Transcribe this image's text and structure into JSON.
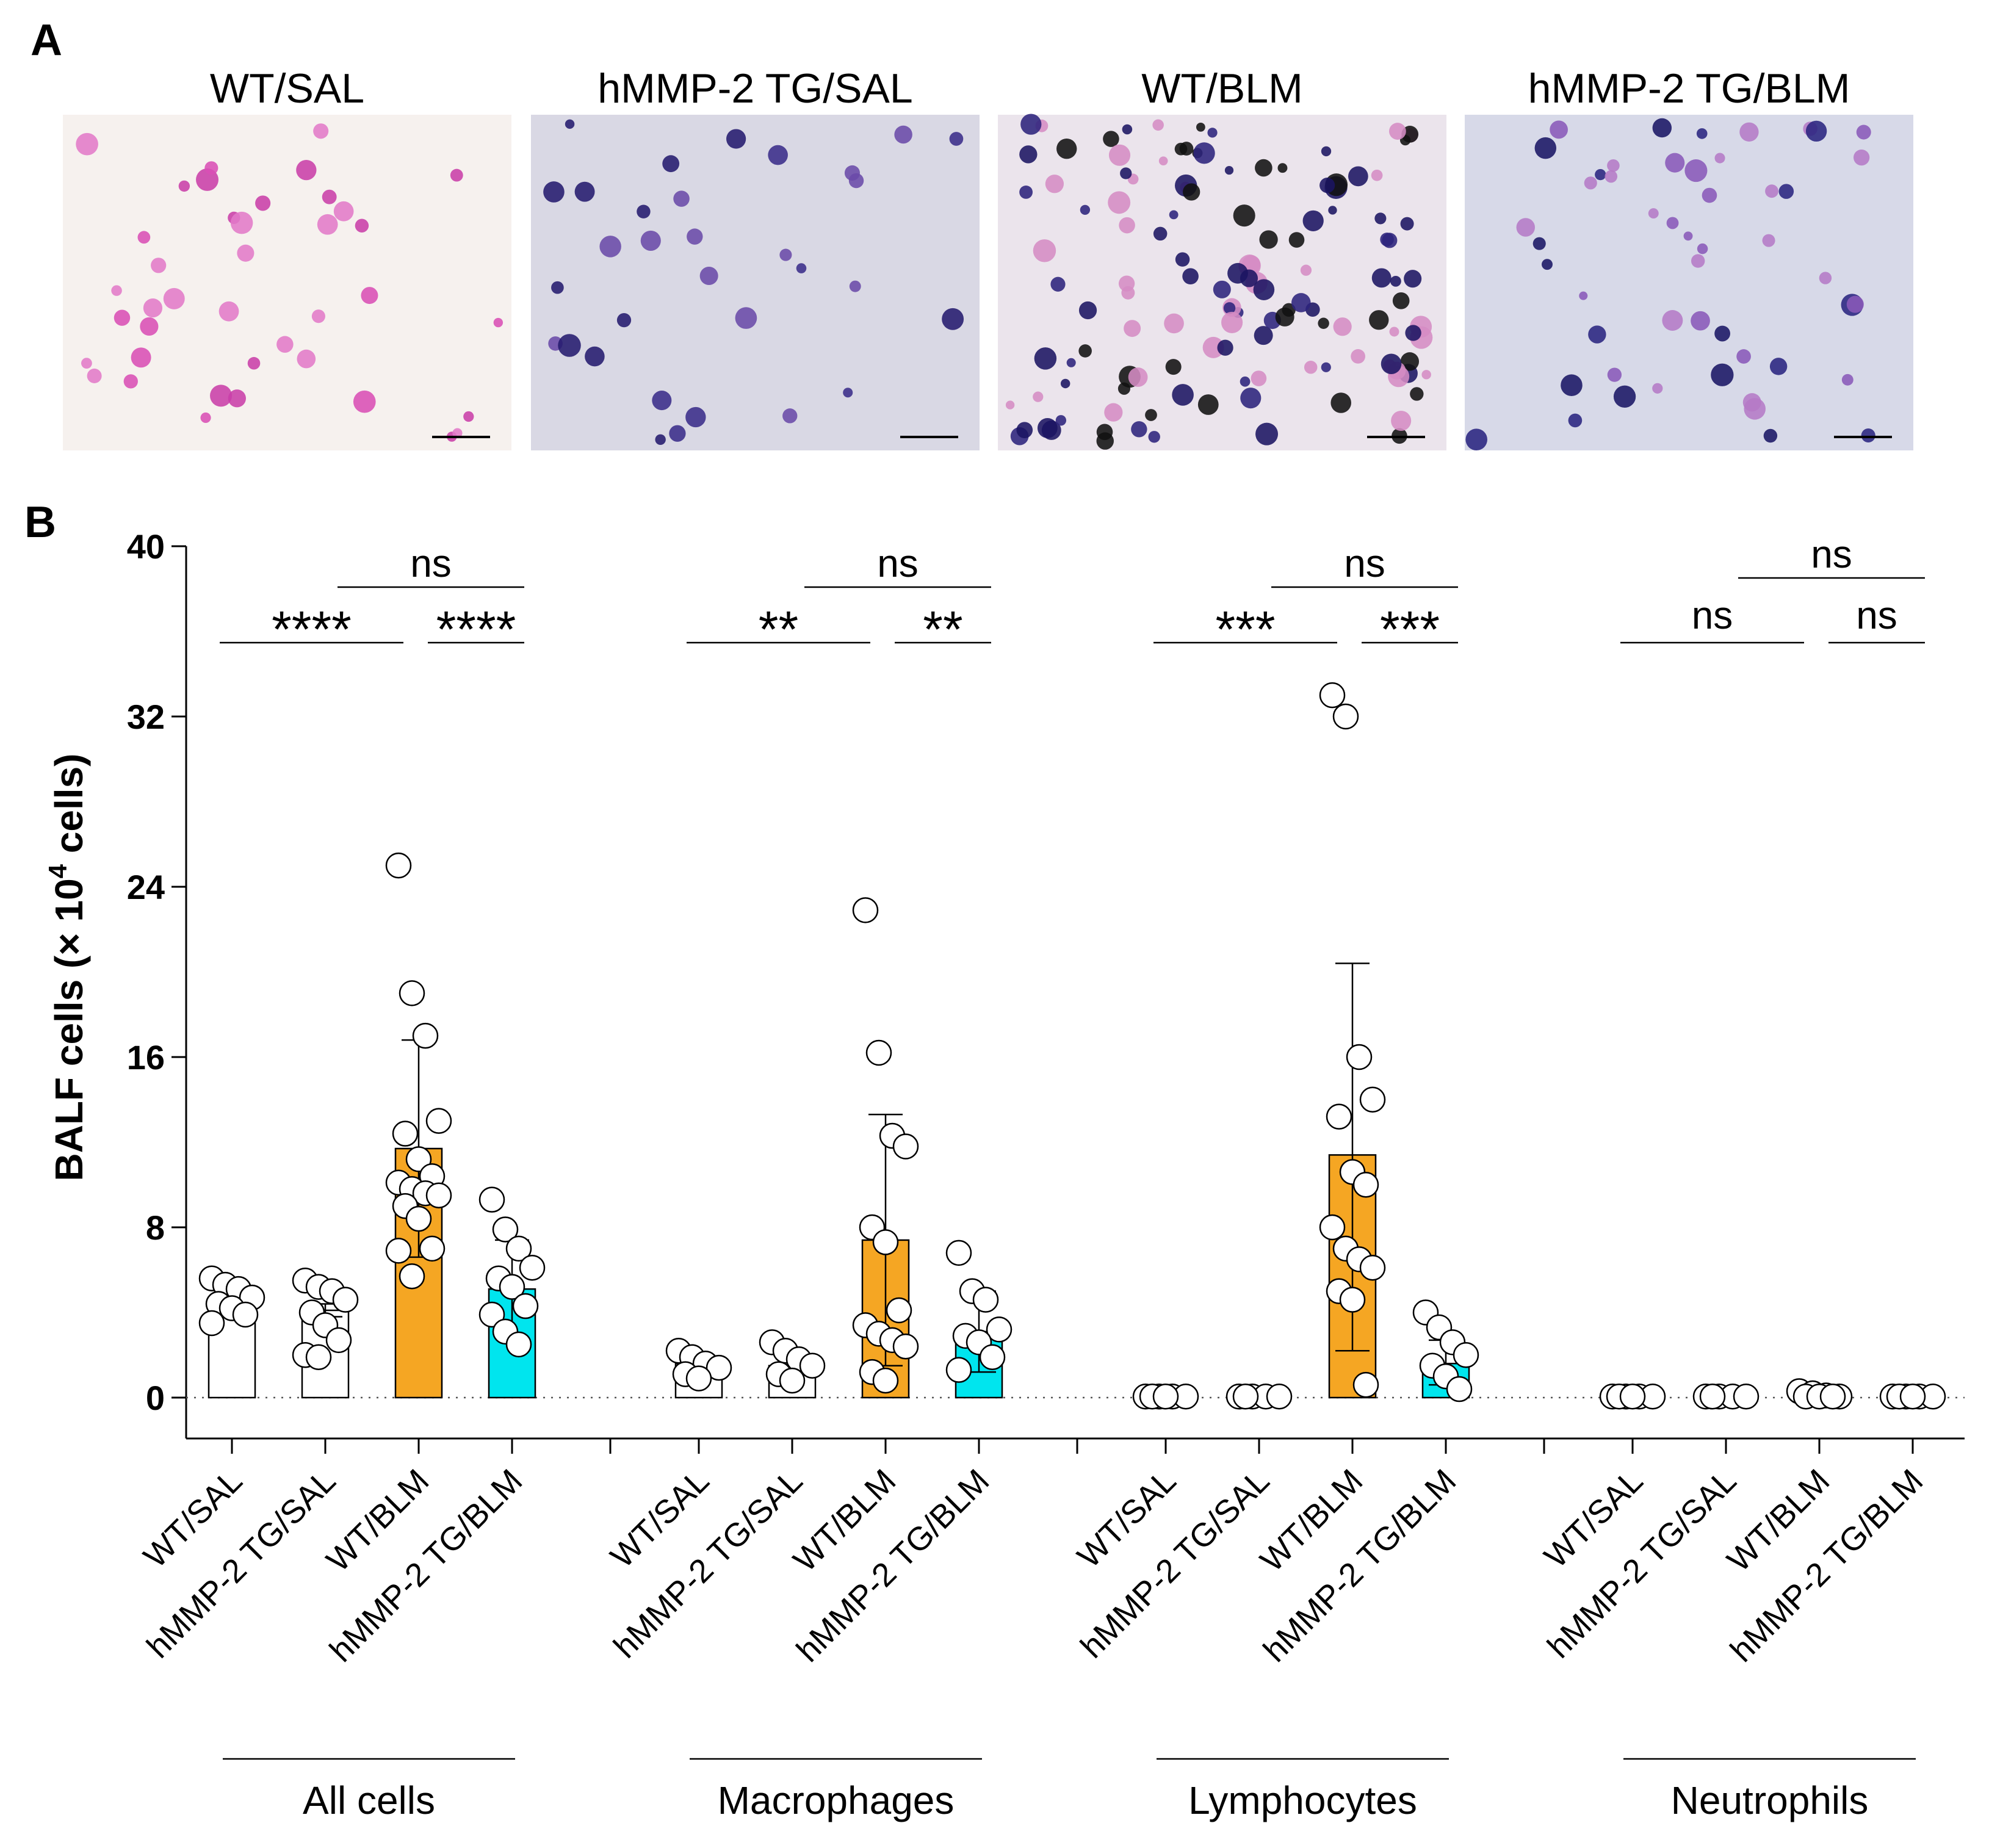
{
  "panels": {
    "A": {
      "letter": "A",
      "images": [
        {
          "title": "WT/SAL",
          "bg": "#f6f1ee",
          "cell_colors": [
            "#d94fb5",
            "#c93fa8",
            "#e27ac8"
          ],
          "density": 40,
          "seed": 3
        },
        {
          "title": "hMMP-2 TG/SAL",
          "bg": "#d9d8e4",
          "cell_colors": [
            "#241a6e",
            "#6a4aa8",
            "#3a2c8a"
          ],
          "density": 32,
          "seed": 11
        },
        {
          "title": "WT/BLM",
          "bg": "#ebe4ec",
          "cell_colors": [
            "#1b1462",
            "#2c237c",
            "#d58cc4",
            "#111"
          ],
          "density": 130,
          "seed": 29
        },
        {
          "title": "hMMP-2 TG/BLM",
          "bg": "#d7d9e8",
          "cell_colors": [
            "#1a1664",
            "#8a59b8",
            "#2a2480",
            "#b57ac6"
          ],
          "density": 50,
          "seed": 47
        }
      ]
    },
    "B": {
      "letter": "B"
    }
  },
  "chart_data": {
    "type": "bar",
    "ylabel": "BALF cells (× 10⁴ cells)",
    "ylabel_parts": {
      "pre": "BALF cells (× 10",
      "sup": "4",
      "post": " cells)"
    },
    "ylim": [
      0,
      40
    ],
    "yticks": [
      "0",
      "8",
      "16",
      "24",
      "32",
      "40"
    ],
    "yticks_values": [
      0,
      8,
      16,
      24,
      32,
      40
    ],
    "categories": [
      "WT/SAL",
      "hMMP-2 TG/SAL",
      "WT/BLM",
      "hMMP-2 TG/BLM"
    ],
    "category_colors": [
      "#ffffff",
      "#ffffff",
      "#f5a623",
      "#00e5ee"
    ],
    "groups": [
      {
        "name": "All cells",
        "means": [
          4.5,
          4.1,
          11.7,
          5.1
        ],
        "sd_upper": [
          4.7,
          4.4,
          16.8,
          7.4
        ],
        "sd_lower": [
          4.3,
          3.8,
          6.6,
          2.8
        ],
        "points": [
          [
            5.6,
            5.3,
            5.1,
            4.7,
            4.4,
            4.2,
            3.9,
            3.5
          ],
          [
            5.5,
            5.2,
            5.0,
            4.6,
            4.0,
            3.4,
            2.7,
            2.0,
            1.9
          ],
          [
            25.0,
            19.0,
            17.0,
            13.0,
            12.4,
            11.2,
            10.4,
            10.1,
            9.8,
            9.6,
            9.5,
            9.0,
            8.4,
            7.0,
            6.9,
            5.7
          ],
          [
            9.3,
            7.9,
            7.0,
            6.1,
            5.6,
            5.2,
            4.3,
            3.9,
            3.1,
            2.5
          ]
        ],
        "sig": [
          {
            "label": "****",
            "kind": "star",
            "from": 0,
            "to": 2
          },
          {
            "label": "****",
            "kind": "star",
            "from": 2,
            "to": 3
          },
          {
            "label": "ns",
            "kind": "ns",
            "from": 1,
            "to": 3,
            "top": true
          }
        ]
      },
      {
        "name": "Macrophages",
        "means": [
          1.6,
          1.5,
          7.4,
          3.1
        ],
        "sd_upper": [
          1.7,
          1.9,
          13.3,
          5.0
        ],
        "sd_lower": [
          1.5,
          1.1,
          1.5,
          1.2
        ],
        "points": [
          [
            2.2,
            1.9,
            1.6,
            1.4,
            1.1,
            0.9
          ],
          [
            2.6,
            2.2,
            1.8,
            1.5,
            1.1,
            0.8
          ],
          [
            22.9,
            16.2,
            12.3,
            11.8,
            8.0,
            7.3,
            4.1,
            3.4,
            3.0,
            2.7,
            2.4,
            1.2,
            0.8
          ],
          [
            6.8,
            5.0,
            4.6,
            3.2,
            2.9,
            2.6,
            1.9,
            1.3
          ]
        ],
        "sig": [
          {
            "label": "**",
            "kind": "star",
            "from": 0,
            "to": 2
          },
          {
            "label": "**",
            "kind": "star",
            "from": 2,
            "to": 3
          },
          {
            "label": "ns",
            "kind": "ns",
            "from": 1,
            "to": 3,
            "top": true
          }
        ]
      },
      {
        "name": "Lymphocytes",
        "means": [
          0.05,
          0.05,
          11.4,
          1.6
        ],
        "sd_upper": [
          0.1,
          0.1,
          20.4,
          2.7
        ],
        "sd_lower": [
          0.0,
          0.0,
          2.2,
          0.6
        ],
        "points": [
          [
            0.05,
            0.05,
            0.05,
            0.05,
            0.05,
            0.05
          ],
          [
            0.05,
            0.05,
            0.05,
            0.05,
            0.05
          ],
          [
            33.0,
            32.0,
            16.0,
            14.0,
            13.2,
            10.6,
            10.0,
            8.0,
            7.0,
            6.5,
            6.1,
            5.0,
            4.6,
            0.6
          ],
          [
            4.0,
            3.3,
            2.6,
            2.0,
            1.5,
            1.0,
            0.4
          ]
        ],
        "sig": [
          {
            "label": "***",
            "kind": "star",
            "from": 0,
            "to": 2
          },
          {
            "label": "***",
            "kind": "star",
            "from": 2,
            "to": 3
          },
          {
            "label": "ns",
            "kind": "ns",
            "from": 1,
            "to": 3,
            "top": true
          }
        ]
      },
      {
        "name": "Neutrophils",
        "means": [
          0.02,
          0.02,
          0.05,
          0.03
        ],
        "sd_upper": [
          0.02,
          0.02,
          0.1,
          0.05
        ],
        "sd_lower": [
          0.0,
          0.0,
          0.0,
          0.0
        ],
        "points": [
          [
            0.05,
            0.05,
            0.05,
            0.05,
            0.05,
            0.05
          ],
          [
            0.05,
            0.05,
            0.05,
            0.05,
            0.05
          ],
          [
            0.3,
            0.2,
            0.1,
            0.05,
            0.05,
            0.05,
            0.05
          ],
          [
            0.05,
            0.05,
            0.05,
            0.05,
            0.05,
            0.05
          ]
        ],
        "sig": [
          {
            "label": "ns",
            "kind": "ns",
            "from": 0,
            "to": 2
          },
          {
            "label": "ns",
            "kind": "ns",
            "from": 2,
            "to": 3
          },
          {
            "label": "ns",
            "kind": "ns",
            "from": 1,
            "to": 3,
            "top": true
          }
        ]
      }
    ]
  }
}
